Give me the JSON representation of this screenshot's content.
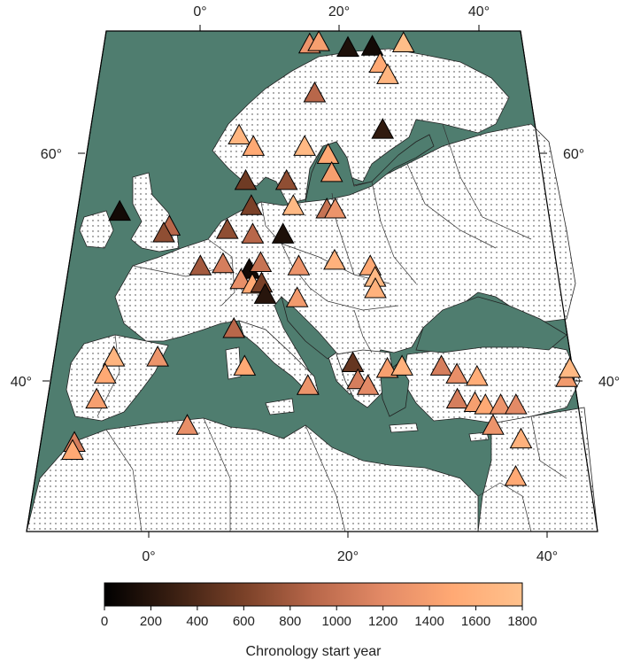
{
  "colors": {
    "sea": "#4f7d6f",
    "land": "#ffffff",
    "border": "#333333",
    "gradient_stops": [
      "#000000",
      "#3a1f12",
      "#7a4128",
      "#b8674a",
      "#e38a66",
      "#ffa974",
      "#ffc18c"
    ]
  },
  "axes": {
    "top_lon_labels": [
      "0°",
      "20°",
      "40°"
    ],
    "bottom_lon_labels": [
      "0°",
      "20°",
      "40°"
    ],
    "left_lat_labels": [
      "60°",
      "40°"
    ],
    "right_lat_labels": [
      "60°",
      "40°"
    ]
  },
  "colorbar": {
    "title": "Chronology start year",
    "ticks": [
      "0",
      "200",
      "400",
      "600",
      "800",
      "1000",
      "1200",
      "1400",
      "1600",
      "1800"
    ],
    "min": 0,
    "max": 1800
  },
  "sites": [
    {
      "lon": 14.5,
      "lat": 69.5,
      "start": 1300
    },
    {
      "lon": 15.8,
      "lat": 69.7,
      "start": 1400
    },
    {
      "lon": 20.0,
      "lat": 69.2,
      "start": 150
    },
    {
      "lon": 23.5,
      "lat": 69.3,
      "start": 100
    },
    {
      "lon": 28.0,
      "lat": 69.6,
      "start": 1750
    },
    {
      "lon": 24.5,
      "lat": 67.8,
      "start": 1500
    },
    {
      "lon": 25.5,
      "lat": 66.8,
      "start": 1650
    },
    {
      "lon": 15.5,
      "lat": 65.2,
      "start": 900
    },
    {
      "lon": 24.5,
      "lat": 62.0,
      "start": 250
    },
    {
      "lon": 6.0,
      "lat": 61.5,
      "start": 1650
    },
    {
      "lon": 8.0,
      "lat": 60.5,
      "start": 1500
    },
    {
      "lon": 14.5,
      "lat": 60.5,
      "start": 1700
    },
    {
      "lon": 17.5,
      "lat": 59.8,
      "start": 1500
    },
    {
      "lon": 18.0,
      "lat": 58.2,
      "start": 1400
    },
    {
      "lon": 7.5,
      "lat": 57.5,
      "start": 550
    },
    {
      "lon": 12.5,
      "lat": 57.5,
      "start": 700
    },
    {
      "lon": -7.0,
      "lat": 54.8,
      "start": 100
    },
    {
      "lon": 8.5,
      "lat": 55.3,
      "start": 600
    },
    {
      "lon": 13.5,
      "lat": 55.3,
      "start": 1700
    },
    {
      "lon": 17.5,
      "lat": 55.0,
      "start": 1000
    },
    {
      "lon": 18.5,
      "lat": 55.0,
      "start": 1300
    },
    {
      "lon": -0.8,
      "lat": 53.5,
      "start": 900
    },
    {
      "lon": -1.3,
      "lat": 52.9,
      "start": 700
    },
    {
      "lon": 6.0,
      "lat": 53.2,
      "start": 700
    },
    {
      "lon": 9.0,
      "lat": 52.8,
      "start": 900
    },
    {
      "lon": 12.5,
      "lat": 52.8,
      "start": 150
    },
    {
      "lon": 3.5,
      "lat": 50.0,
      "start": 800
    },
    {
      "lon": 6.0,
      "lat": 50.2,
      "start": 1100
    },
    {
      "lon": 9.0,
      "lat": 49.7,
      "start": 100
    },
    {
      "lon": 10.2,
      "lat": 50.3,
      "start": 1000
    },
    {
      "lon": 8.2,
      "lat": 48.8,
      "start": 1250
    },
    {
      "lon": 9.5,
      "lat": 48.4,
      "start": 1500
    },
    {
      "lon": 10.5,
      "lat": 48.5,
      "start": 600
    },
    {
      "lon": 11.0,
      "lat": 47.5,
      "start": 200
    },
    {
      "lon": 14.5,
      "lat": 50.0,
      "start": 1300
    },
    {
      "lon": 18.5,
      "lat": 50.5,
      "start": 1600
    },
    {
      "lon": 22.5,
      "lat": 50.0,
      "start": 1500
    },
    {
      "lon": 23.0,
      "lat": 49.0,
      "start": 1700
    },
    {
      "lon": 23.0,
      "lat": 48.0,
      "start": 1600
    },
    {
      "lon": 14.5,
      "lat": 47.2,
      "start": 1350
    },
    {
      "lon": 8.0,
      "lat": 44.5,
      "start": 900
    },
    {
      "lon": 9.5,
      "lat": 41.2,
      "start": 1500
    },
    {
      "lon": 0.5,
      "lat": 42.0,
      "start": 1300
    },
    {
      "lon": -4.0,
      "lat": 42.0,
      "start": 1650
    },
    {
      "lon": -4.5,
      "lat": 40.5,
      "start": 1500
    },
    {
      "lon": -4.8,
      "lat": 38.3,
      "start": 1400
    },
    {
      "lon": 16.0,
      "lat": 39.5,
      "start": 1300
    },
    {
      "lon": 20.5,
      "lat": 41.5,
      "start": 500
    },
    {
      "lon": 21.0,
      "lat": 40.0,
      "start": 1100
    },
    {
      "lon": 22.0,
      "lat": 39.5,
      "start": 1200
    },
    {
      "lon": 24.0,
      "lat": 41.0,
      "start": 1400
    },
    {
      "lon": 25.5,
      "lat": 41.2,
      "start": 1600
    },
    {
      "lon": 29.5,
      "lat": 41.2,
      "start": 1100
    },
    {
      "lon": 31.0,
      "lat": 40.5,
      "start": 1250
    },
    {
      "lon": 33.0,
      "lat": 40.3,
      "start": 1550
    },
    {
      "lon": 30.8,
      "lat": 38.3,
      "start": 1100
    },
    {
      "lon": 32.5,
      "lat": 38.0,
      "start": 1400
    },
    {
      "lon": 33.5,
      "lat": 37.8,
      "start": 1500
    },
    {
      "lon": 35.0,
      "lat": 37.8,
      "start": 1300
    },
    {
      "lon": 36.5,
      "lat": 37.8,
      "start": 1200
    },
    {
      "lon": 42.0,
      "lat": 40.2,
      "start": 1350
    },
    {
      "lon": 42.5,
      "lat": 41.0,
      "start": 1700
    },
    {
      "lon": 34.0,
      "lat": 36.0,
      "start": 1300
    },
    {
      "lon": 36.5,
      "lat": 34.8,
      "start": 1600
    },
    {
      "lon": 35.5,
      "lat": 31.5,
      "start": 1500
    },
    {
      "lon": 4.5,
      "lat": 36.0,
      "start": 1250
    },
    {
      "lon": -6.0,
      "lat": 34.5,
      "start": 1100
    },
    {
      "lon": -6.0,
      "lat": 33.8,
      "start": 1500
    }
  ]
}
